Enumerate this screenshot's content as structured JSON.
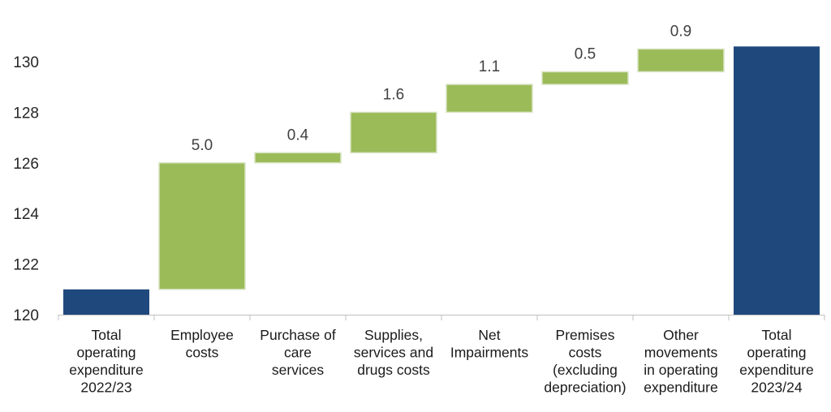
{
  "chart_data": {
    "type": "waterfall",
    "title": "",
    "xlabel": "",
    "ylabel": "",
    "ylim": [
      120,
      131
    ],
    "yticks": [
      120,
      122,
      124,
      126,
      128,
      130
    ],
    "grid": false,
    "legend": "none",
    "colors": {
      "total": "#1f497d",
      "increase": "#9bbb59",
      "increase_edge": "#d9e4c4"
    },
    "categories": [
      {
        "lines": [
          "Total",
          "operating",
          "expenditure",
          "2022/23"
        ]
      },
      {
        "lines": [
          "Employee",
          "costs"
        ]
      },
      {
        "lines": [
          "Purchase of",
          "care",
          "services"
        ]
      },
      {
        "lines": [
          "Supplies,",
          "services and",
          "drugs costs"
        ]
      },
      {
        "lines": [
          "Net",
          "Impairments"
        ]
      },
      {
        "lines": [
          "Premises",
          "costs",
          "(excluding",
          "depreciation)"
        ]
      },
      {
        "lines": [
          "Other",
          "movements",
          "in operating",
          "expenditure"
        ]
      },
      {
        "lines": [
          "Total",
          "operating",
          "expenditure",
          "2023/24"
        ]
      }
    ],
    "bars": [
      {
        "kind": "total",
        "value": 121.0,
        "label": ""
      },
      {
        "kind": "increase",
        "value": 5.0,
        "label": "5.0"
      },
      {
        "kind": "increase",
        "value": 0.4,
        "label": "0.4"
      },
      {
        "kind": "increase",
        "value": 1.6,
        "label": "1.6"
      },
      {
        "kind": "increase",
        "value": 1.1,
        "label": "1.1"
      },
      {
        "kind": "increase",
        "value": 0.5,
        "label": "0.5"
      },
      {
        "kind": "increase",
        "value": 0.9,
        "label": "0.9"
      },
      {
        "kind": "total",
        "value": 130.6,
        "label": ""
      }
    ]
  }
}
